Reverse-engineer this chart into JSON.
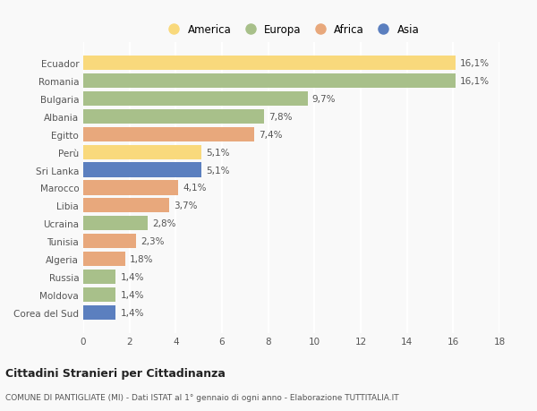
{
  "countries": [
    "Ecuador",
    "Romania",
    "Bulgaria",
    "Albania",
    "Egitto",
    "Perù",
    "Sri Lanka",
    "Marocco",
    "Libia",
    "Ucraina",
    "Tunisia",
    "Algeria",
    "Russia",
    "Moldova",
    "Corea del Sud"
  ],
  "values": [
    16.1,
    16.1,
    9.7,
    7.8,
    7.4,
    5.1,
    5.1,
    4.1,
    3.7,
    2.8,
    2.3,
    1.8,
    1.4,
    1.4,
    1.4
  ],
  "labels": [
    "16,1%",
    "16,1%",
    "9,7%",
    "7,8%",
    "7,4%",
    "5,1%",
    "5,1%",
    "4,1%",
    "3,7%",
    "2,8%",
    "2,3%",
    "1,8%",
    "1,4%",
    "1,4%",
    "1,4%"
  ],
  "continents": [
    "America",
    "Europa",
    "Europa",
    "Europa",
    "Africa",
    "America",
    "Asia",
    "Africa",
    "Africa",
    "Europa",
    "Africa",
    "Africa",
    "Europa",
    "Europa",
    "Asia"
  ],
  "colors": {
    "America": "#F9D97C",
    "Europa": "#A8C08A",
    "Africa": "#E8A87C",
    "Asia": "#5B7FBF"
  },
  "legend_order": [
    "America",
    "Europa",
    "Africa",
    "Asia"
  ],
  "title": "Cittadini Stranieri per Cittadinanza",
  "subtitle": "COMUNE DI PANTIGLIATE (MI) - Dati ISTAT al 1° gennaio di ogni anno - Elaborazione TUTTITALIA.IT",
  "xlim": [
    0,
    18
  ],
  "xticks": [
    0,
    2,
    4,
    6,
    8,
    10,
    12,
    14,
    16,
    18
  ],
  "background_color": "#f9f9f9",
  "plot_bg_color": "#f9f9f9",
  "label_fontsize": 7.5,
  "ytick_fontsize": 7.5,
  "xtick_fontsize": 7.5,
  "bar_height": 0.82
}
